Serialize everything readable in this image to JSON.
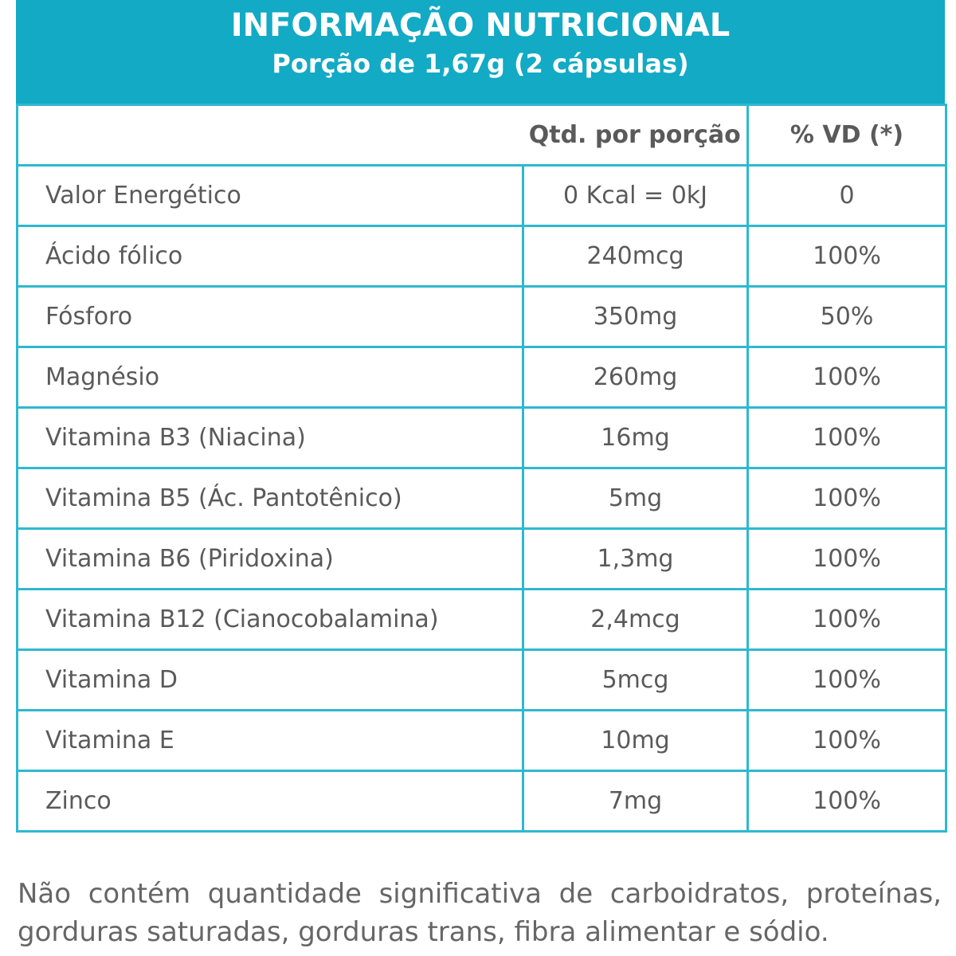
{
  "header": {
    "title": "INFORMAÇÃO NUTRICIONAL",
    "subtitle": "Porção de 1,67g (2 cápsulas)"
  },
  "table": {
    "columns": [
      "",
      "Qtd. por porção",
      "% VD (*)"
    ],
    "rows": [
      {
        "name": "Valor Energético",
        "qty": "0 Kcal = 0kJ",
        "vd": "0"
      },
      {
        "name": "Ácido fólico",
        "qty": "240mcg",
        "vd": "100%"
      },
      {
        "name": "Fósforo",
        "qty": "350mg",
        "vd": "50%"
      },
      {
        "name": "Magnésio",
        "qty": "260mg",
        "vd": "100%"
      },
      {
        "name": "Vitamina B3 (Niacina)",
        "qty": "16mg",
        "vd": "100%"
      },
      {
        "name": "Vitamina B5 (Ác. Pantotênico)",
        "qty": "5mg",
        "vd": "100%"
      },
      {
        "name": "Vitamina B6 (Piridoxina)",
        "qty": "1,3mg",
        "vd": "100%"
      },
      {
        "name": "Vitamina B12 (Cianocobalamina)",
        "qty": "2,4mcg",
        "vd": "100%"
      },
      {
        "name": "Vitamina D",
        "qty": "5mcg",
        "vd": "100%"
      },
      {
        "name": "Vitamina E",
        "qty": "10mg",
        "vd": "100%"
      },
      {
        "name": "Zinco",
        "qty": "7mg",
        "vd": "100%"
      }
    ]
  },
  "footnote": "Não contém quantidade significativa de carboidratos, proteínas, gorduras saturadas, gorduras trans, fibra alimentar e sódio.",
  "colors": {
    "accent": "#12aac5",
    "border": "#2fb8d0",
    "text": "#5a5a5a"
  }
}
